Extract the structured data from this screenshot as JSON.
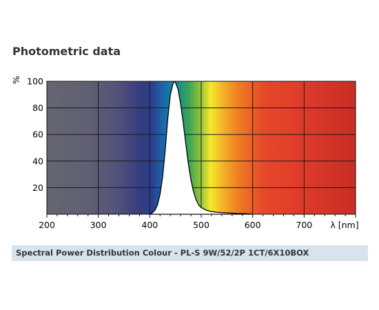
{
  "section_title": "Photometric data",
  "caption": "Spectral Power Distribution Colour - PL-S 9W/52/2P 1CT/6X10BOX",
  "chart_data": {
    "type": "area",
    "title": "",
    "xlabel": "λ [nm]",
    "ylabel": "%",
    "xlim": [
      200,
      800
    ],
    "ylim": [
      0,
      100
    ],
    "x_ticks": [
      200,
      300,
      400,
      500,
      600,
      700
    ],
    "y_ticks": [
      20,
      40,
      60,
      80,
      100
    ],
    "grid": true,
    "background": "visible spectrum gradient",
    "series": [
      {
        "x": [
          400,
          405,
          410,
          415,
          420,
          425,
          430,
          435,
          440,
          445,
          448,
          450,
          455,
          460,
          465,
          470,
          475,
          480,
          485,
          490,
          495,
          500,
          505,
          510,
          520,
          530,
          540,
          550,
          560,
          570,
          580,
          590,
          600
        ],
        "y": [
          0,
          1,
          3,
          7,
          15,
          28,
          48,
          72,
          90,
          98,
          100,
          99,
          94,
          83,
          69,
          53,
          38,
          26,
          17,
          11,
          7,
          5,
          4,
          3,
          2,
          1.5,
          1.2,
          1,
          0.8,
          0.6,
          0.5,
          0.3,
          0
        ]
      }
    ]
  }
}
